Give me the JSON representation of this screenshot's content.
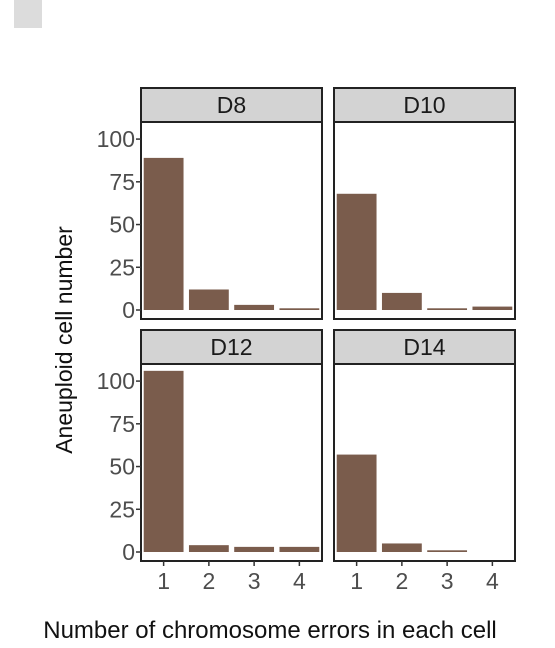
{
  "chart_data": {
    "type": "bar",
    "layout": "facet-grid-2x2",
    "bar_color": "#7a5c4c",
    "strip_fill": "#d3d3d3",
    "frame_color": "#222222",
    "xlabel": "Number of chromosome errors in each cell",
    "ylabel": "Aneuploid cell number",
    "categories": [
      "1",
      "2",
      "3",
      "4"
    ],
    "ylim": [
      0,
      110
    ],
    "yticks": [
      "0",
      "25",
      "50",
      "75",
      "100"
    ],
    "ytick_values": [
      0,
      25,
      50,
      75,
      100
    ],
    "grid": false,
    "panels": [
      {
        "title": "D8",
        "values": [
          89,
          12,
          3,
          1
        ]
      },
      {
        "title": "D10",
        "values": [
          68,
          10,
          1,
          2
        ]
      },
      {
        "title": "D12",
        "values": [
          106,
          4,
          3,
          3
        ]
      },
      {
        "title": "D14",
        "values": [
          57,
          5,
          1,
          0
        ]
      }
    ]
  }
}
